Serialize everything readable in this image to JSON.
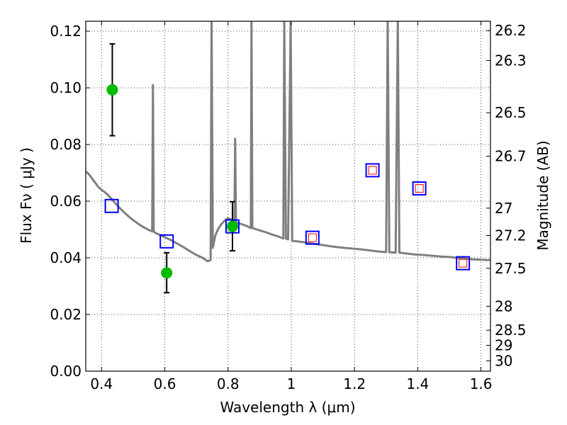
{
  "chart_data": {
    "type": "scatter",
    "xlabel": "Wavelength  λ (μm)",
    "ylabel": "Flux  Fν  ( μJy )",
    "y2label": "Magnitude (AB)",
    "xlim": [
      0.35,
      1.63
    ],
    "ylim": [
      0.0,
      0.1235
    ],
    "x_ticks": [
      0.4,
      0.6,
      0.8,
      1.0,
      1.2,
      1.4,
      1.6
    ],
    "x_tick_labels": [
      "0.4",
      "0.6",
      "0.8",
      "1",
      "1.2",
      "1.4",
      "1.6"
    ],
    "y_ticks": [
      0.0,
      0.02,
      0.04,
      0.06,
      0.08,
      0.1,
      0.12
    ],
    "y_tick_labels": [
      "0.00",
      "0.02",
      "0.04",
      "0.06",
      "0.08",
      "0.10",
      "0.12"
    ],
    "mag_ticks": [
      26.2,
      26.3,
      26.5,
      26.7,
      27,
      27.2,
      27.5,
      28,
      28.5,
      29,
      30
    ],
    "mag_tick_labels": [
      "26.2",
      "26.3",
      "26.5",
      "26.7",
      "27",
      "27.2",
      "27.5",
      "28",
      "28.5",
      "29",
      "30"
    ],
    "grid": true,
    "series": [
      {
        "kind": "model_spectrum",
        "color": "#7f7f7f",
        "points": [
          [
            0.35,
            0.0705
          ],
          [
            0.36,
            0.0695
          ],
          [
            0.37,
            0.068
          ],
          [
            0.38,
            0.0665
          ],
          [
            0.39,
            0.065
          ],
          [
            0.4,
            0.064
          ],
          [
            0.41,
            0.0632
          ],
          [
            0.42,
            0.0622
          ],
          [
            0.43,
            0.061
          ],
          [
            0.44,
            0.0597
          ],
          [
            0.45,
            0.0585
          ],
          [
            0.46,
            0.0573
          ],
          [
            0.47,
            0.0562
          ],
          [
            0.48,
            0.0552
          ],
          [
            0.49,
            0.0542
          ],
          [
            0.5,
            0.0533
          ],
          [
            0.51,
            0.0525
          ],
          [
            0.52,
            0.0517
          ],
          [
            0.53,
            0.051
          ],
          [
            0.54,
            0.0504
          ],
          [
            0.55,
            0.0498
          ],
          [
            0.56,
            0.0493
          ],
          [
            0.5625,
            0.101
          ],
          [
            0.565,
            0.0493
          ],
          [
            0.57,
            0.0488
          ],
          [
            0.58,
            0.0483
          ],
          [
            0.6,
            0.0473
          ],
          [
            0.62,
            0.0462
          ],
          [
            0.64,
            0.045
          ],
          [
            0.66,
            0.0437
          ],
          [
            0.68,
            0.0423
          ],
          [
            0.7,
            0.041
          ],
          [
            0.72,
            0.04
          ],
          [
            0.735,
            0.0388
          ],
          [
            0.745,
            0.0392
          ],
          [
            0.748,
            0.124
          ],
          [
            0.752,
            0.0435
          ],
          [
            0.76,
            0.048
          ],
          [
            0.77,
            0.0505
          ],
          [
            0.78,
            0.052
          ],
          [
            0.79,
            0.0532
          ],
          [
            0.8,
            0.054
          ],
          [
            0.81,
            0.0535
          ],
          [
            0.82,
            0.0528
          ],
          [
            0.8225,
            0.082
          ],
          [
            0.825,
            0.0525
          ],
          [
            0.84,
            0.052
          ],
          [
            0.86,
            0.0512
          ],
          [
            0.872,
            0.0505
          ],
          [
            0.874,
            0.124
          ],
          [
            0.877,
            0.0505
          ],
          [
            0.9,
            0.0497
          ],
          [
            0.92,
            0.049
          ],
          [
            0.94,
            0.0482
          ],
          [
            0.96,
            0.0475
          ],
          [
            0.975,
            0.0468
          ],
          [
            0.978,
            0.124
          ],
          [
            0.983,
            0.0468
          ],
          [
            0.99,
            0.0465
          ],
          [
            0.998,
            0.124
          ],
          [
            1.003,
            0.046
          ],
          [
            1.02,
            0.0458
          ],
          [
            1.04,
            0.0455
          ],
          [
            1.07,
            0.045
          ],
          [
            1.1,
            0.0445
          ],
          [
            1.13,
            0.044
          ],
          [
            1.16,
            0.0436
          ],
          [
            1.19,
            0.0433
          ],
          [
            1.22,
            0.043
          ],
          [
            1.25,
            0.0426
          ],
          [
            1.28,
            0.0422
          ],
          [
            1.3,
            0.042
          ],
          [
            1.305,
            0.124
          ],
          [
            1.31,
            0.042
          ],
          [
            1.33,
            0.0418
          ],
          [
            1.337,
            0.124
          ],
          [
            1.342,
            0.0418
          ],
          [
            1.36,
            0.0416
          ],
          [
            1.39,
            0.0412
          ],
          [
            1.42,
            0.041
          ],
          [
            1.45,
            0.0407
          ],
          [
            1.48,
            0.0404
          ],
          [
            1.51,
            0.0402
          ],
          [
            1.54,
            0.0398
          ],
          [
            1.57,
            0.0395
          ],
          [
            1.6,
            0.0393
          ],
          [
            1.63,
            0.0392
          ]
        ]
      },
      {
        "kind": "observed_detections",
        "color": "#00bb00",
        "points": [
          {
            "x": 0.434,
            "y": 0.0993,
            "err_low": 0.0831,
            "err_high": 0.1155
          },
          {
            "x": 0.606,
            "y": 0.0347,
            "err_low": 0.0277,
            "err_high": 0.0418
          },
          {
            "x": 0.814,
            "y": 0.0511,
            "err_low": 0.0425,
            "err_high": 0.0598
          }
        ]
      },
      {
        "kind": "model_synthetic_photometry",
        "color": "#0000ff",
        "points": [
          {
            "x": 0.432,
            "y": 0.0583
          },
          {
            "x": 0.606,
            "y": 0.0458
          },
          {
            "x": 0.814,
            "y": 0.0511
          },
          {
            "x": 1.067,
            "y": 0.0471
          },
          {
            "x": 1.257,
            "y": 0.0709
          },
          {
            "x": 1.405,
            "y": 0.0645
          },
          {
            "x": 1.543,
            "y": 0.0381
          }
        ]
      },
      {
        "kind": "expected_photometry",
        "color": "#ff0000",
        "points": [
          {
            "x": 1.067,
            "y": 0.0471
          },
          {
            "x": 1.257,
            "y": 0.0709
          },
          {
            "x": 1.405,
            "y": 0.0645
          },
          {
            "x": 1.543,
            "y": 0.0381
          }
        ]
      }
    ]
  }
}
